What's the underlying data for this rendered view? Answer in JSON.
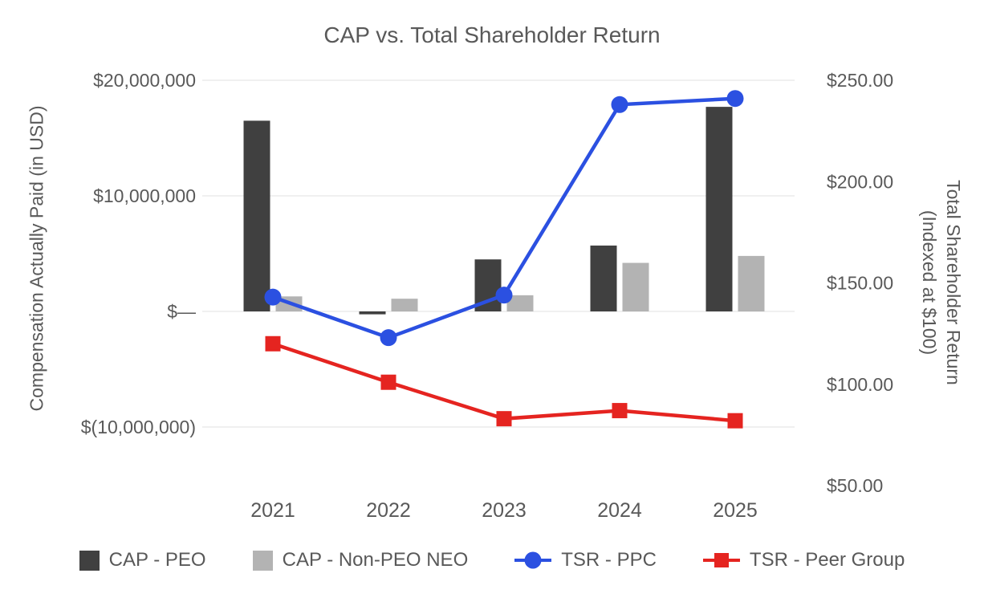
{
  "title": "CAP vs. Total Shareholder Return",
  "left_axis": {
    "title": "Compensation Actually Paid (in USD)",
    "ticks": [
      {
        "v": 20000000,
        "label": "$20,000,000"
      },
      {
        "v": 10000000,
        "label": "$10,000,000"
      },
      {
        "v": 0,
        "label": "$—"
      },
      {
        "v": -10000000,
        "label": "$(10,000,000)"
      }
    ]
  },
  "right_axis": {
    "title_line1": "Total Shareholder Return",
    "title_line2": "(Indexed at $100)",
    "ticks": [
      {
        "v": 250,
        "label": "$250.00"
      },
      {
        "v": 200,
        "label": "$200.00"
      },
      {
        "v": 150,
        "label": "$150.00"
      },
      {
        "v": 100,
        "label": "$100.00"
      },
      {
        "v": 50,
        "label": "$50.00"
      }
    ]
  },
  "chart_data": {
    "type": "combo",
    "subtype": "bars-left-axis, lines-right-axis",
    "title": "CAP vs. Total Shareholder Return",
    "categories": [
      "2021",
      "2022",
      "2023",
      "2024",
      "2025"
    ],
    "bar_series": [
      {
        "name": "CAP - PEO",
        "color": "#404040",
        "axis": "left",
        "values": [
          16500000,
          -250000,
          4500000,
          5700000,
          17700000
        ]
      },
      {
        "name": "CAP - Non-PEO NEO",
        "color": "#b3b3b3",
        "axis": "left",
        "values": [
          1300000,
          1100000,
          1400000,
          4200000,
          4800000
        ]
      }
    ],
    "line_series": [
      {
        "name": "TSR - PPC",
        "color": "#2b50e1",
        "marker": "circle",
        "axis": "right",
        "values": [
          143,
          123,
          144,
          238,
          241
        ]
      },
      {
        "name": "TSR - Peer Group",
        "color": "#e52420",
        "marker": "square",
        "axis": "right",
        "values": [
          120,
          101,
          83,
          87,
          82
        ]
      }
    ],
    "left_axis_label": "Compensation Actually Paid (in USD)",
    "right_axis_label": "Total Shareholder Return (Indexed at $100)",
    "left_axis_range": [
      -10000000,
      20000000
    ],
    "right_axis_range": [
      50,
      250
    ],
    "grid": "horizontal",
    "gridline_color": "#e7e7e7",
    "text_color": "#595959",
    "legend_position": "bottom"
  }
}
